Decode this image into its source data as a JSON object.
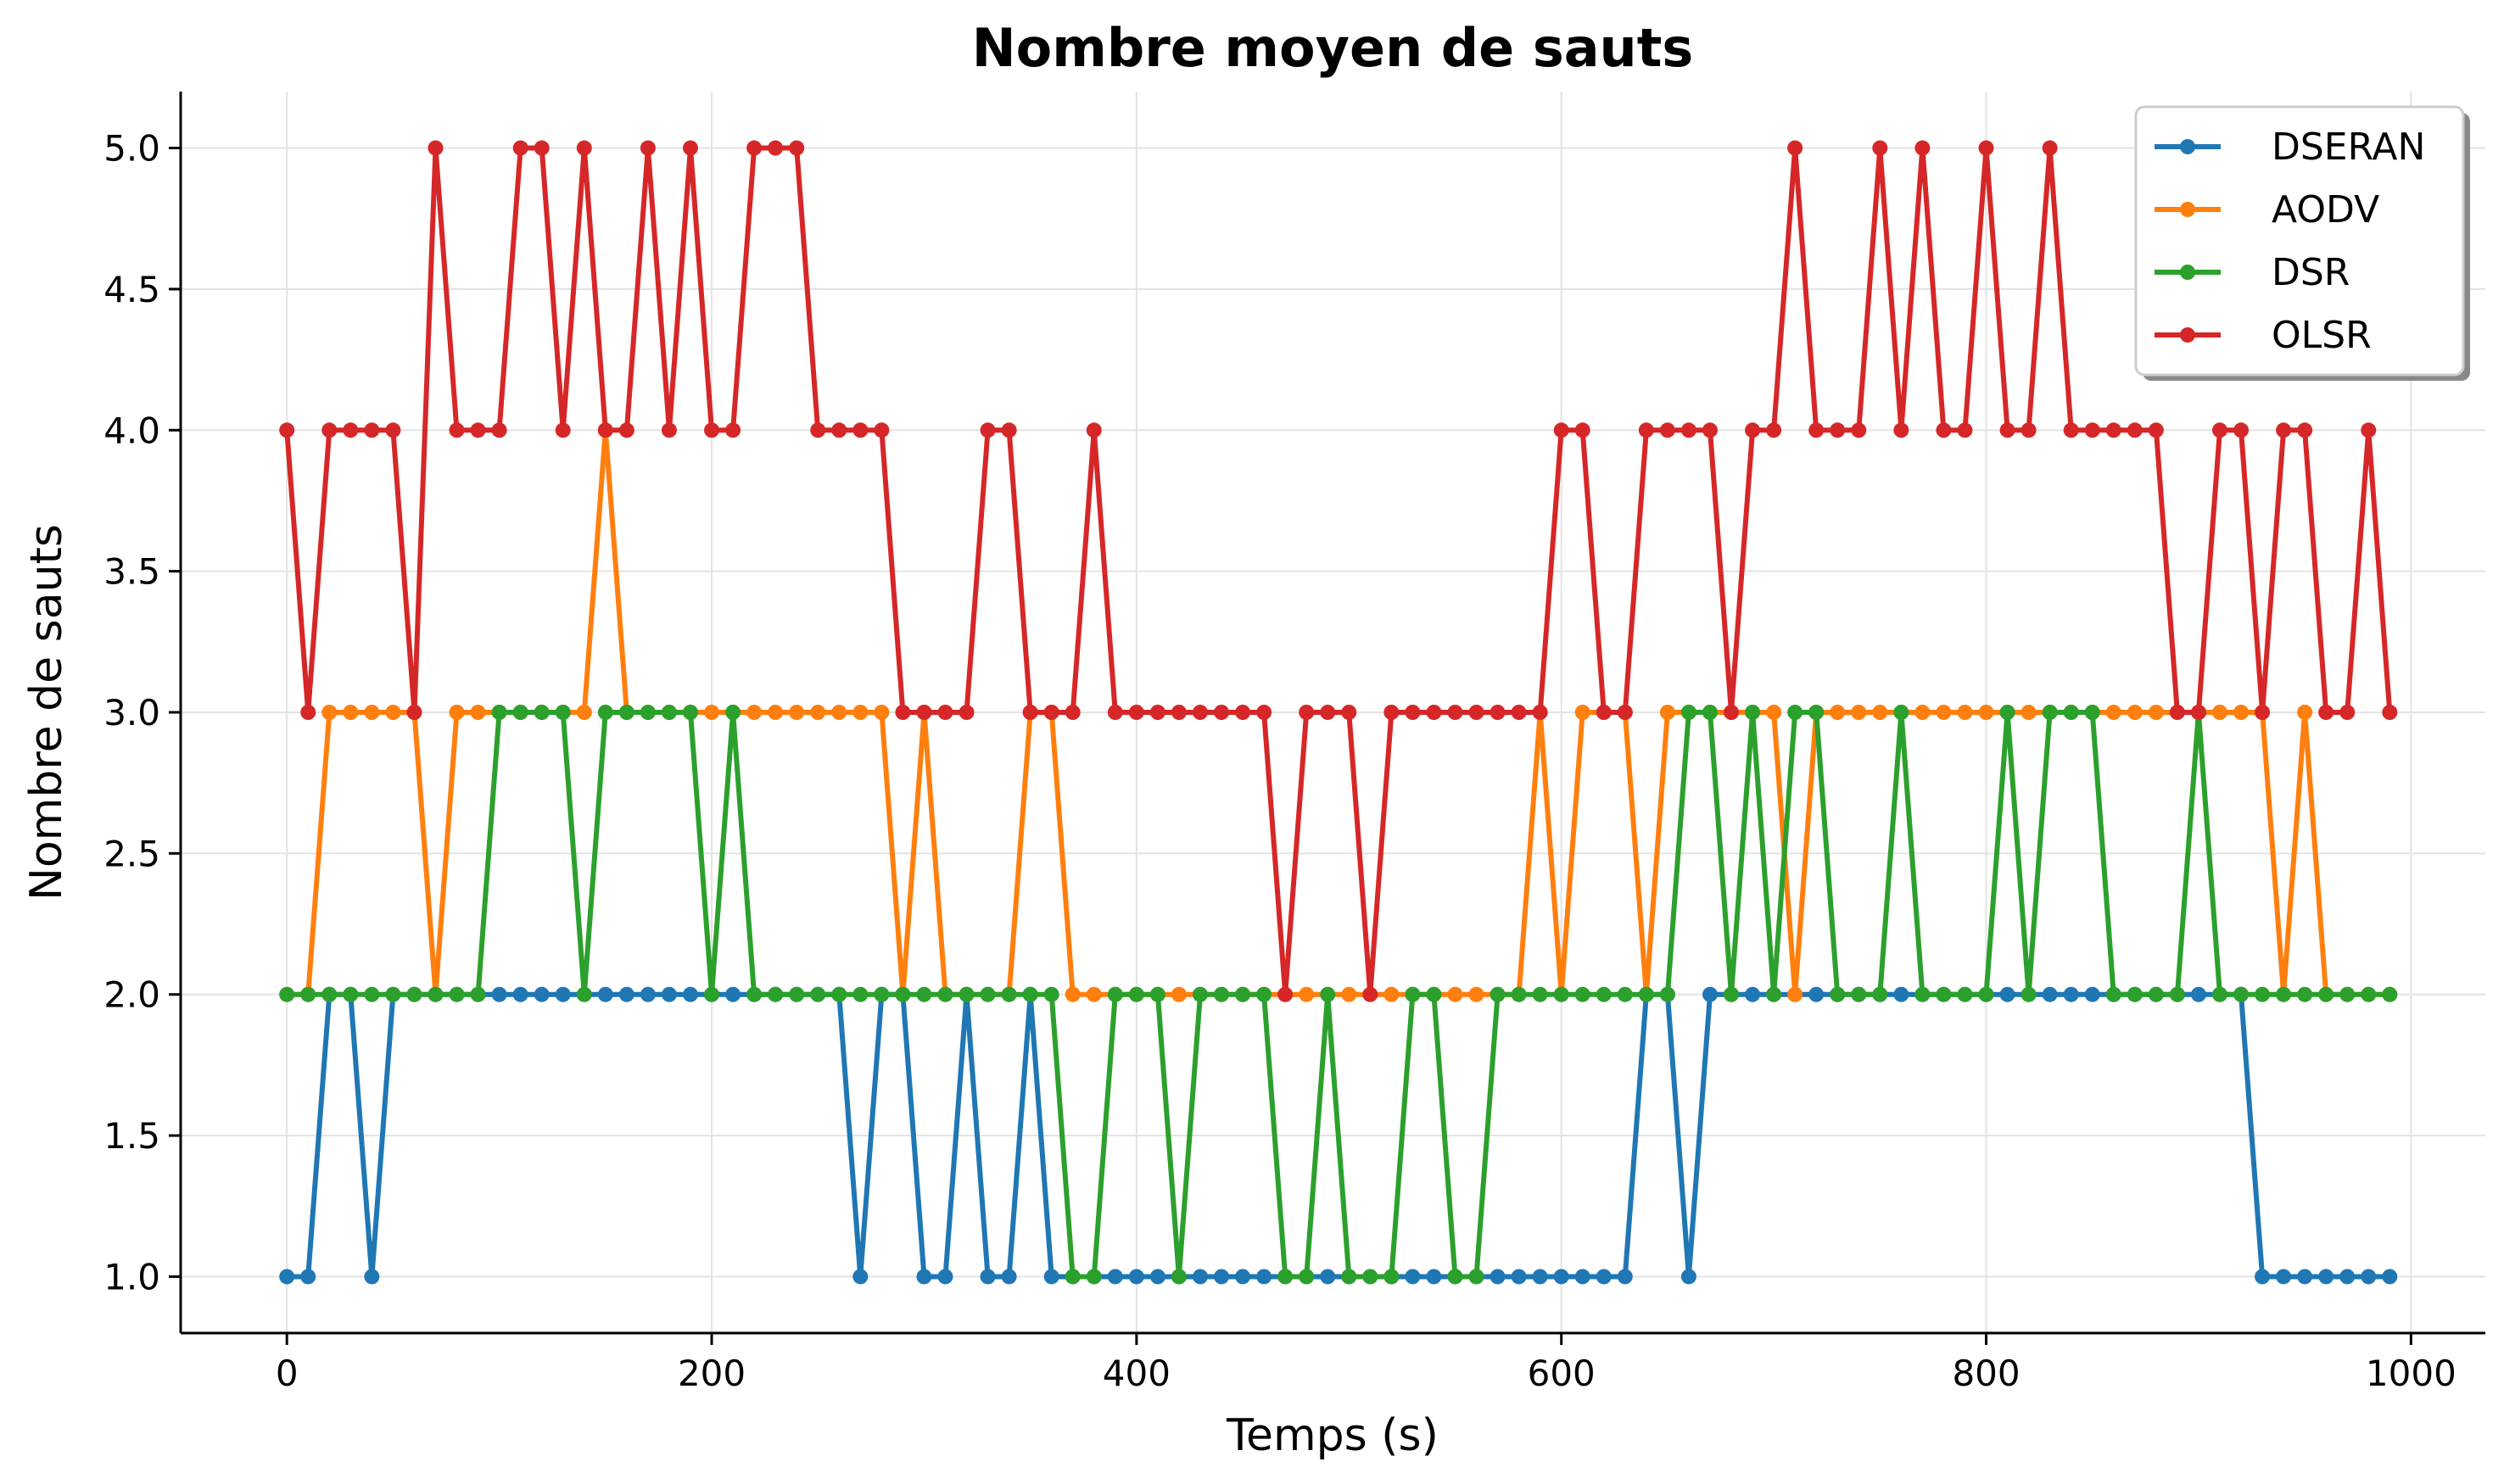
{
  "chart_data": {
    "type": "line",
    "title": "Nombre moyen de sauts",
    "xlabel": "Temps (s)",
    "ylabel": "Nombre de sauts",
    "xlim": [
      -50,
      1035
    ],
    "ylim": [
      0.8,
      5.2
    ],
    "xticks": [
      0,
      200,
      400,
      600,
      800,
      1000
    ],
    "yticks": [
      1.0,
      1.5,
      2.0,
      2.5,
      3.0,
      3.5,
      4.0,
      4.5,
      5.0
    ],
    "xtick_labels": [
      "0",
      "200",
      "400",
      "600",
      "800",
      "1000"
    ],
    "ytick_labels": [
      "1.0",
      "1.5",
      "2.0",
      "2.5",
      "3.0",
      "3.5",
      "4.0",
      "4.5",
      "5.0"
    ],
    "grid": true,
    "legend_position": "upper right",
    "x": [
      0,
      10,
      20,
      30,
      40,
      50,
      60,
      70,
      80,
      90,
      100,
      110,
      120,
      130,
      140,
      150,
      160,
      170,
      180,
      190,
      200,
      210,
      220,
      230,
      240,
      250,
      260,
      270,
      280,
      290,
      300,
      310,
      320,
      330,
      340,
      350,
      360,
      370,
      380,
      390,
      400,
      410,
      420,
      430,
      440,
      450,
      460,
      470,
      480,
      490,
      500,
      510,
      520,
      530,
      540,
      550,
      560,
      570,
      580,
      590,
      600,
      610,
      620,
      630,
      640,
      650,
      660,
      670,
      680,
      690,
      700,
      710,
      720,
      730,
      740,
      750,
      760,
      770,
      780,
      790,
      800,
      810,
      820,
      830,
      840,
      850,
      860,
      870,
      880,
      890,
      900,
      910,
      920,
      930,
      940,
      950,
      960,
      970,
      980,
      990
    ],
    "series": [
      {
        "name": "DSERAN",
        "color": "#1f77b4",
        "values": [
          1,
          1,
          2,
          2,
          1,
          2,
          2,
          2,
          2,
          2,
          2,
          2,
          2,
          2,
          2,
          2,
          2,
          2,
          2,
          2,
          2,
          2,
          2,
          2,
          2,
          2,
          2,
          1,
          2,
          2,
          1,
          1,
          2,
          1,
          1,
          2,
          1,
          1,
          1,
          1,
          1,
          1,
          1,
          1,
          1,
          1,
          1,
          1,
          1,
          1,
          1,
          1,
          1,
          1,
          1,
          1,
          1,
          1,
          1,
          1,
          1,
          1,
          1,
          1,
          2,
          2,
          1,
          2,
          2,
          2,
          2,
          2,
          2,
          2,
          2,
          2,
          2,
          2,
          2,
          2,
          2,
          2,
          2,
          2,
          2,
          2,
          2,
          2,
          2,
          2,
          2,
          2,
          2,
          1,
          1,
          1,
          1,
          1,
          1,
          1
        ]
      },
      {
        "name": "AODV",
        "color": "#ff7f0e",
        "values": [
          2,
          2,
          3,
          3,
          3,
          3,
          3,
          2,
          3,
          3,
          3,
          3,
          3,
          3,
          3,
          4,
          3,
          3,
          3,
          3,
          3,
          3,
          3,
          3,
          3,
          3,
          3,
          3,
          3,
          2,
          3,
          2,
          2,
          2,
          2,
          3,
          3,
          2,
          2,
          2,
          2,
          2,
          2,
          2,
          2,
          2,
          2,
          2,
          2,
          2,
          2,
          2,
          2,
          2,
          2,
          2,
          2,
          2,
          2,
          3,
          2,
          3,
          3,
          3,
          2,
          3,
          3,
          3,
          3,
          3,
          3,
          2,
          3,
          3,
          3,
          3,
          3,
          3,
          3,
          3,
          3,
          3,
          3,
          3,
          3,
          3,
          3,
          3,
          3,
          3,
          3,
          3,
          3,
          3,
          2,
          3,
          2,
          2,
          2,
          2
        ]
      },
      {
        "name": "DSR",
        "color": "#2ca02c",
        "values": [
          2,
          2,
          2,
          2,
          2,
          2,
          2,
          2,
          2,
          2,
          3,
          3,
          3,
          3,
          2,
          3,
          3,
          3,
          3,
          3,
          2,
          3,
          2,
          2,
          2,
          2,
          2,
          2,
          2,
          2,
          2,
          2,
          2,
          2,
          2,
          2,
          2,
          1,
          1,
          2,
          2,
          2,
          1,
          2,
          2,
          2,
          2,
          1,
          1,
          2,
          1,
          1,
          1,
          2,
          2,
          1,
          1,
          2,
          2,
          2,
          2,
          2,
          2,
          2,
          2,
          2,
          3,
          3,
          2,
          3,
          2,
          3,
          3,
          2,
          2,
          2,
          3,
          2,
          2,
          2,
          2,
          3,
          2,
          3,
          3,
          3,
          2,
          2,
          2,
          2,
          3,
          2,
          2,
          2,
          2,
          2,
          2,
          2,
          2,
          2
        ]
      },
      {
        "name": "OLSR",
        "color": "#d62728",
        "values": [
          4,
          3,
          4,
          4,
          4,
          4,
          3,
          5,
          4,
          4,
          4,
          5,
          5,
          4,
          5,
          4,
          4,
          5,
          4,
          5,
          4,
          4,
          5,
          5,
          5,
          4,
          4,
          4,
          4,
          3,
          3,
          3,
          3,
          4,
          4,
          3,
          3,
          3,
          4,
          3,
          3,
          3,
          3,
          3,
          3,
          3,
          3,
          2,
          3,
          3,
          3,
          2,
          3,
          3,
          3,
          3,
          3,
          3,
          3,
          3,
          4,
          4,
          3,
          3,
          4,
          4,
          4,
          4,
          3,
          4,
          4,
          5,
          4,
          4,
          4,
          5,
          4,
          5,
          4,
          4,
          5,
          4,
          4,
          5,
          4,
          4,
          4,
          4,
          4,
          3,
          3,
          4,
          4,
          3,
          4,
          4,
          3,
          3,
          4,
          3
        ]
      }
    ]
  }
}
